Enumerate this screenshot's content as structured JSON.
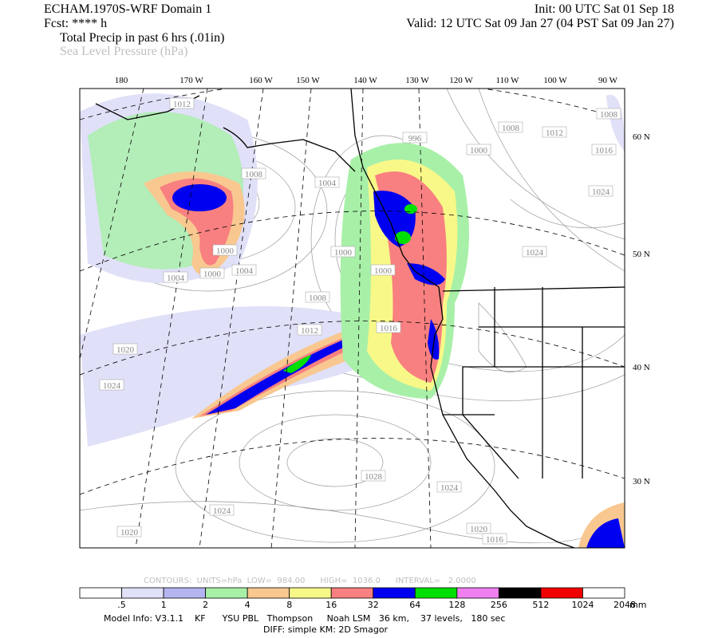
{
  "header": {
    "title": "ECHAM.1970S-WRF Domain 1",
    "init": "Init: 00 UTC Sat 01 Sep 18",
    "fcst": "Fcst: **** h",
    "valid": "Valid: 12 UTC Sat 09 Jan 27 (04 PST Sat 09 Jan 27)",
    "field1": "Total Precip in past 6 hrs (.01in)",
    "field2": "Sea Level Pressure (hPa)"
  },
  "map": {
    "lon_labels": [
      "180",
      "170 W",
      "160 W",
      "150 W",
      "140 W",
      "130 W",
      "120 W",
      "110 W",
      "100 W",
      "90 W"
    ],
    "lat_labels": [
      "60 N",
      "50 N",
      "40 N",
      "30 N"
    ],
    "pressure_labels": [
      "1012",
      "1008",
      "1004",
      "1008",
      "1012",
      "1008",
      "1016",
      "1024",
      "1024",
      "1000",
      "1004",
      "1000",
      "1004",
      "1000",
      "1000",
      "1008",
      "1012",
      "1016",
      "1020",
      "1024",
      "1028",
      "1024",
      "1024",
      "1020",
      "1020",
      "1016",
      "996",
      "1000"
    ]
  },
  "contour_info": "CONTOURS:  UNITS=hPa  LOW=  984.00      HIGH=  1036.0      INTERVAL=   2.0000",
  "colorbar": {
    "colors": [
      "#ffffff",
      "#e0e0f8",
      "#b4b4f0",
      "#a8f0a8",
      "#f8c890",
      "#f8f888",
      "#f88080",
      "#0000f0",
      "#00e000",
      "#f080f0",
      "#000000",
      "#f00000",
      "#ffffff"
    ],
    "labels": [
      ".5",
      "1",
      "2",
      "4",
      "8",
      "16",
      "32",
      "64",
      "128",
      "256",
      "512",
      "1024",
      "2048"
    ],
    "unit": "mm"
  },
  "footer": {
    "line1": "Model Info: V3.1.1    KF      YSU PBL   Thompson     Noah LSM   36 km,    37 levels,   180 sec",
    "line2": "DIFF: simple KM: 2D Smagor"
  }
}
